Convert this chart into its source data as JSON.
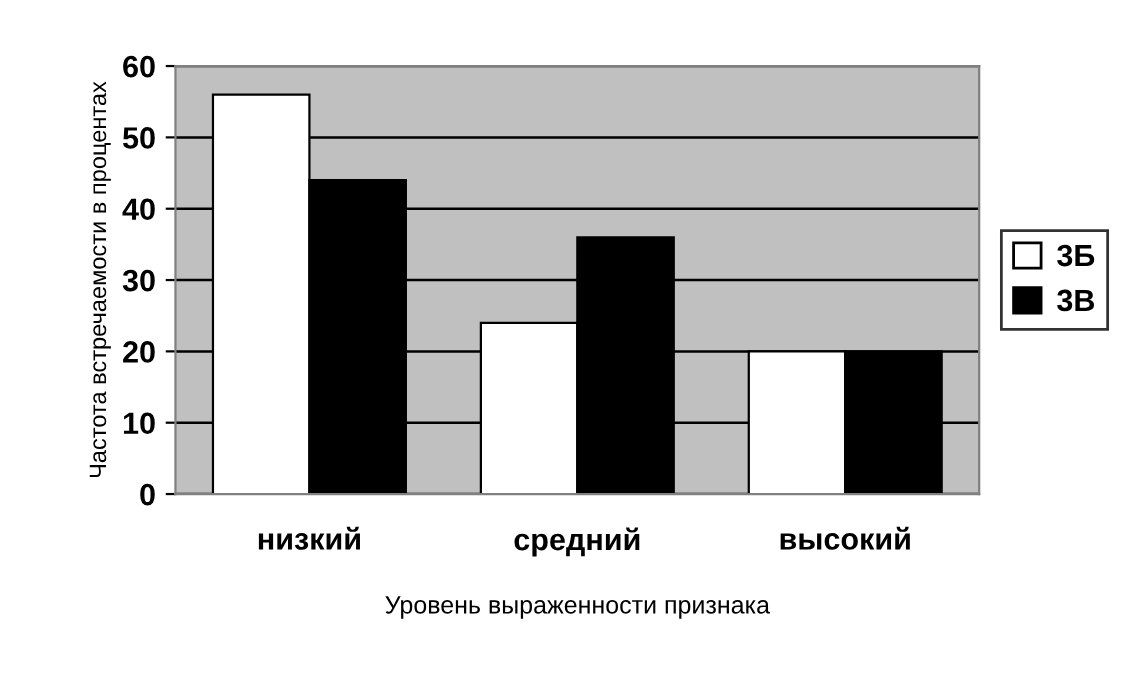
{
  "chart_data": {
    "type": "bar",
    "xlabel": "Уровень выраженности признака",
    "ylabel": "Частота встречаемости в процентах",
    "categories": [
      "низкий",
      "средний",
      "высокий"
    ],
    "series": [
      {
        "name": "3Б",
        "color": "#ffffff",
        "values": [
          56,
          24,
          20
        ]
      },
      {
        "name": "3В",
        "color": "#000000",
        "values": [
          44,
          36,
          20
        ]
      }
    ],
    "ylim": [
      0,
      60
    ],
    "yticks": [
      0,
      10,
      20,
      30,
      40,
      50,
      60
    ],
    "grid": "y",
    "legend": "right"
  }
}
